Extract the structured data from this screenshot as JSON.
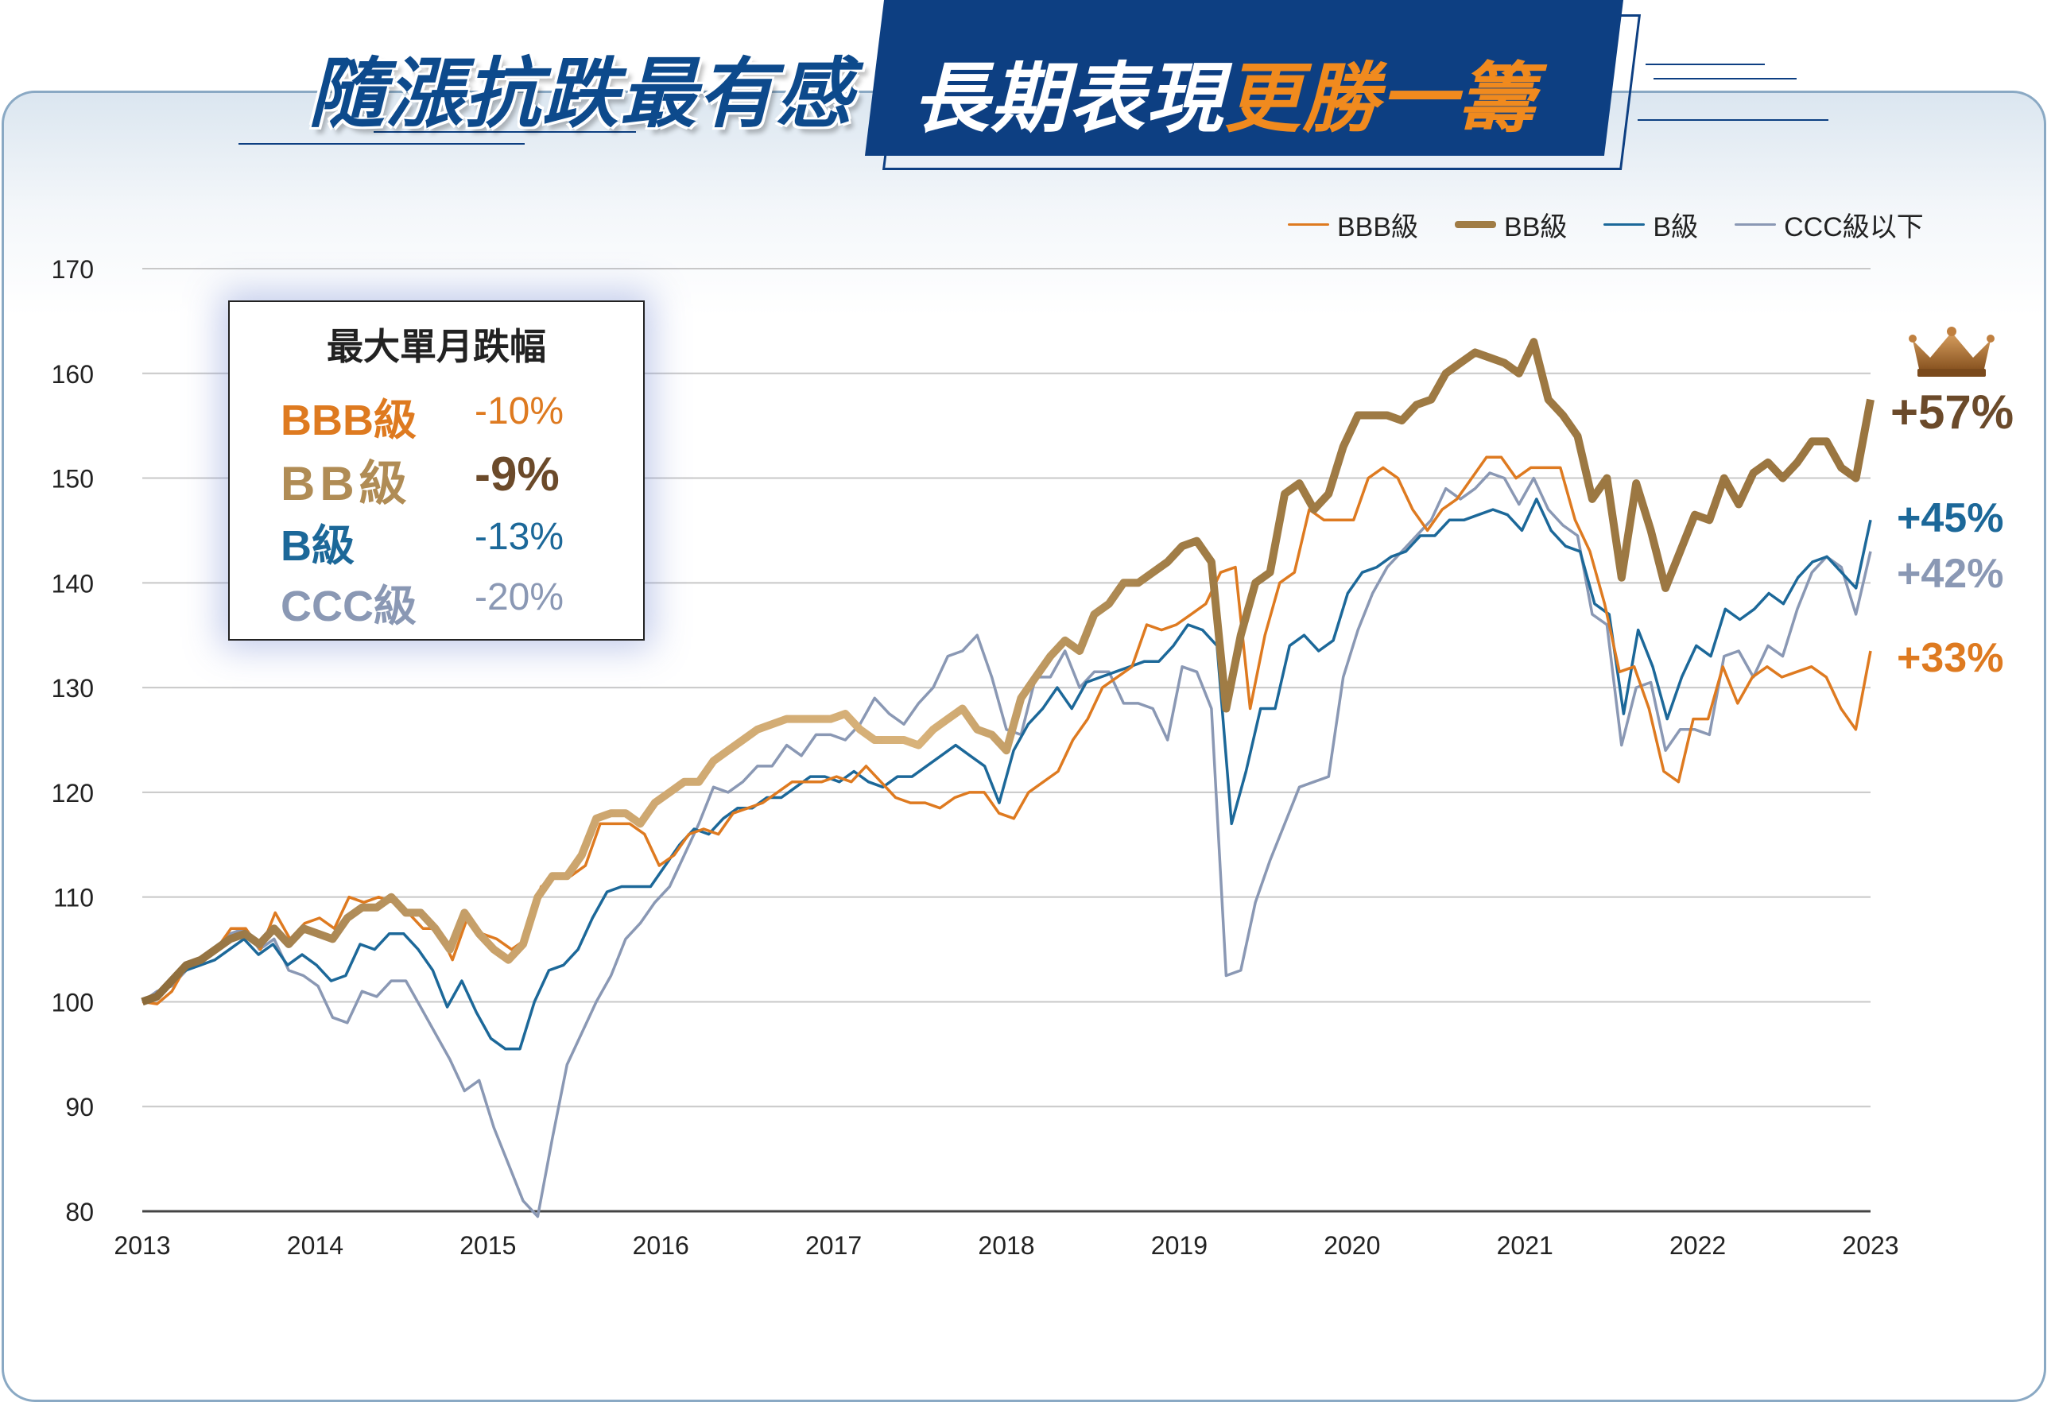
{
  "header": {
    "title_left": "隨漲抗跌最有感",
    "title_right_main": "長期表現",
    "title_right_accent": "更勝一籌"
  },
  "legend": [
    {
      "name": "BBB級",
      "color": "#de7a20"
    },
    {
      "name": "BB級",
      "color": "#a07c45"
    },
    {
      "name": "B級",
      "color": "#1c6899"
    },
    {
      "name": "CCC級以下",
      "color": "#8a98b4"
    }
  ],
  "drawdown_box": {
    "title": "最大單月跌幅",
    "rows": [
      {
        "label": "BBB級",
        "value": "-10%",
        "color": "#de7a20"
      },
      {
        "label": "BB級",
        "value": "-9%",
        "color": "#b08c55",
        "value_color": "#6b4a2a"
      },
      {
        "label": "B級",
        "value": "-13%",
        "color": "#1c6899"
      },
      {
        "label": "CCC級",
        "value": "-20%",
        "color": "#8a98b4"
      }
    ]
  },
  "end_labels": [
    {
      "series": "BB級",
      "text": "+57%",
      "color": "#6b4a2a"
    },
    {
      "series": "B級",
      "text": "+45%",
      "color": "#1c6899"
    },
    {
      "series": "CCC級以下",
      "text": "+42%",
      "color": "#8a98b4"
    },
    {
      "series": "BBB級",
      "text": "+33%",
      "color": "#de7a20"
    }
  ],
  "chart_data": {
    "type": "line",
    "title": "",
    "xlabel": "",
    "ylabel": "",
    "x_start_year": 2013,
    "x_end_year": 2023,
    "xticks": [
      "2013",
      "2014",
      "2015",
      "2016",
      "2017",
      "2018",
      "2019",
      "2020",
      "2021",
      "2022",
      "2023"
    ],
    "ylim": [
      80,
      170
    ],
    "yticks": [
      80,
      90,
      100,
      110,
      120,
      130,
      140,
      150,
      160,
      170
    ],
    "grid": "horizontal",
    "legend_position": "top-right",
    "series": [
      {
        "name": "BBB級",
        "color": "#de7a20",
        "values": [
          100,
          99.8,
          101,
          103.5,
          104,
          105,
          107,
          107,
          105,
          108.5,
          106,
          107.5,
          108,
          107,
          110,
          109.5,
          110,
          109.5,
          108.5,
          107,
          107,
          104,
          108,
          106.5,
          106,
          105,
          106,
          111,
          112,
          112,
          113,
          117,
          117,
          117,
          116,
          113,
          114,
          116,
          116.5,
          116,
          118,
          118.5,
          119,
          120,
          121,
          121,
          121,
          121.5,
          121,
          122.5,
          121,
          119.5,
          119,
          119,
          118.5,
          119.5,
          120,
          120,
          118,
          117.5,
          120,
          121,
          122,
          125,
          127,
          130,
          131,
          132,
          136,
          135.5,
          136,
          137,
          138,
          141,
          141.5,
          128,
          135,
          140,
          141,
          147,
          146,
          146,
          146,
          150,
          151,
          150,
          147,
          145,
          147,
          148,
          150,
          152,
          152,
          150,
          151,
          151,
          151,
          146,
          143,
          138,
          131.5,
          132,
          128,
          122,
          121,
          127,
          127,
          132,
          128.5,
          131,
          132,
          131,
          131.5,
          132,
          131,
          128,
          126,
          133.5
        ]
      },
      {
        "name": "BB級",
        "color": "#a07c45",
        "values": [
          100,
          100.5,
          102,
          103.5,
          104,
          105,
          106,
          106.5,
          105.5,
          107,
          105.5,
          107,
          106.5,
          106,
          108,
          109,
          109,
          110,
          108.5,
          108.5,
          107,
          105,
          108.5,
          106.5,
          105,
          104,
          105.5,
          110,
          112,
          112,
          114,
          117.5,
          118,
          118,
          117,
          119,
          120,
          121,
          121,
          123,
          124,
          125,
          126,
          126.5,
          127,
          127,
          127,
          127,
          127.5,
          126,
          125,
          125,
          125,
          124.5,
          126,
          127,
          128,
          126,
          125.5,
          124,
          129,
          131,
          133,
          134.5,
          133.5,
          137,
          138,
          140,
          140,
          141,
          142,
          143.5,
          144,
          142,
          128,
          135,
          140,
          141,
          148.5,
          149.5,
          147,
          148.5,
          153,
          156,
          156,
          156,
          155.5,
          157,
          157.5,
          160,
          161,
          162,
          161.5,
          161,
          160,
          163,
          157.5,
          156,
          154,
          148,
          150,
          140.5,
          149.5,
          145,
          139.5,
          143,
          146.5,
          146,
          150,
          147.5,
          150.5,
          151.5,
          150,
          151.5,
          153.5,
          153.5,
          151,
          150,
          157.5
        ]
      },
      {
        "name": "B級",
        "color": "#1c6899",
        "values": [
          100,
          100.5,
          102,
          103,
          103.5,
          104,
          105,
          106,
          104.5,
          105.5,
          103.5,
          104.5,
          103.5,
          102,
          102.5,
          105.5,
          105,
          106.5,
          106.5,
          105,
          103,
          99.5,
          102,
          99,
          96.5,
          95.5,
          95.5,
          100,
          103,
          103.5,
          105,
          108,
          110.5,
          111,
          111,
          111,
          113,
          115,
          116.5,
          116,
          117.5,
          118.5,
          118.5,
          119.5,
          119.5,
          120.5,
          121.5,
          121.5,
          121,
          122,
          121,
          120.5,
          121.5,
          121.5,
          122.5,
          123.5,
          124.5,
          123.5,
          122.5,
          119,
          124,
          126.5,
          128,
          130,
          128,
          130.5,
          131,
          131.5,
          132,
          132.5,
          132.5,
          134,
          136,
          135.5,
          134,
          117,
          122,
          128,
          128,
          134,
          135,
          133.5,
          134.5,
          139,
          141,
          141.5,
          142.5,
          143,
          144.5,
          144.5,
          146,
          146,
          146.5,
          147,
          146.5,
          145,
          148,
          145,
          143.5,
          143,
          138,
          137,
          127.5,
          135.5,
          132,
          127,
          131,
          134,
          133,
          137.5,
          136.5,
          137.5,
          139,
          138,
          140.5,
          142,
          142.5,
          141,
          139.5,
          146
        ]
      },
      {
        "name": "CCC級以下",
        "color": "#8a98b4",
        "values": [
          100,
          101,
          101.5,
          103,
          104,
          105,
          106.5,
          107,
          105,
          106,
          103,
          102.5,
          101.5,
          98.5,
          98,
          101,
          100.5,
          102,
          102,
          99.5,
          97,
          94.5,
          91.5,
          92.5,
          88,
          84.5,
          81,
          79.5,
          87,
          94,
          97,
          100,
          102.5,
          106,
          107.5,
          109.5,
          111,
          114,
          117,
          120.5,
          120,
          121,
          122.5,
          122.5,
          124.5,
          123.5,
          125.5,
          125.5,
          125,
          126.5,
          129,
          127.5,
          126.5,
          128.5,
          130,
          133,
          133.5,
          135,
          131,
          126,
          125.5,
          131,
          131,
          133.5,
          130,
          131.5,
          131.5,
          128.5,
          128.5,
          128,
          125,
          132,
          131.5,
          128,
          102.5,
          103,
          109.5,
          113.5,
          117,
          120.5,
          121,
          121.5,
          131,
          135.5,
          139,
          141.5,
          143,
          144.5,
          146,
          149,
          148,
          149,
          150.5,
          150,
          147.5,
          150,
          147,
          145.5,
          144.5,
          137,
          136,
          124.5,
          130,
          130.5,
          124,
          126,
          126,
          125.5,
          133,
          133.5,
          131,
          134,
          133,
          137.5,
          141,
          142.5,
          141.5,
          137,
          143
        ]
      }
    ]
  }
}
